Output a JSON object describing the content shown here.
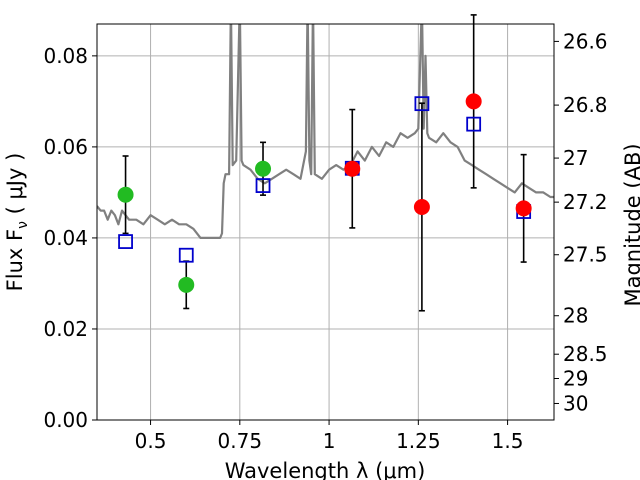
{
  "chart_data": {
    "type": "scatter",
    "xlabel": "Wavelength  λ (μm)",
    "ylabel": "Flux  F_ν  ( μJy )",
    "ylabel_parts": {
      "main": "Flux  F",
      "sub": "ν",
      "tail": "  ( μJy )"
    },
    "y2label": "Magnitude (AB)",
    "xlim": [
      0.35,
      1.63
    ],
    "ylim": [
      0.0,
      0.087
    ],
    "grid": true,
    "xticks": [
      {
        "value": 0.5,
        "label": "0.5"
      },
      {
        "value": 0.75,
        "label": "0.75"
      },
      {
        "value": 1.0,
        "label": "1"
      },
      {
        "value": 1.25,
        "label": "1.25"
      },
      {
        "value": 1.5,
        "label": "1.5"
      }
    ],
    "yticks": [
      {
        "value": 0.0,
        "label": "0.00"
      },
      {
        "value": 0.02,
        "label": "0.02"
      },
      {
        "value": 0.04,
        "label": "0.04"
      },
      {
        "value": 0.06,
        "label": "0.06"
      },
      {
        "value": 0.08,
        "label": "0.08"
      }
    ],
    "y2ticks": [
      {
        "value": 26.6,
        "label": "26.6"
      },
      {
        "value": 26.8,
        "label": "26.8"
      },
      {
        "value": 27.0,
        "label": "27"
      },
      {
        "value": 27.2,
        "label": "27.2"
      },
      {
        "value": 27.5,
        "label": "27.5"
      },
      {
        "value": 28.0,
        "label": "28"
      },
      {
        "value": 28.5,
        "label": "28.5"
      },
      {
        "value": 29.0,
        "label": "29"
      },
      {
        "value": 30.0,
        "label": "30"
      }
    ],
    "colors": {
      "spectrum": "#808080",
      "detected": "#ff0000",
      "detected_green": "#22bb22",
      "model": "#0000cc",
      "errorbar": "#000000",
      "grid": "#b0b0b0"
    },
    "spectrum": [
      [
        0.35,
        0.047
      ],
      [
        0.36,
        0.046
      ],
      [
        0.37,
        0.046
      ],
      [
        0.38,
        0.044
      ],
      [
        0.39,
        0.046
      ],
      [
        0.4,
        0.045
      ],
      [
        0.41,
        0.043
      ],
      [
        0.42,
        0.046
      ],
      [
        0.44,
        0.044
      ],
      [
        0.46,
        0.044
      ],
      [
        0.48,
        0.043
      ],
      [
        0.5,
        0.045
      ],
      [
        0.52,
        0.044
      ],
      [
        0.54,
        0.043
      ],
      [
        0.56,
        0.044
      ],
      [
        0.58,
        0.043
      ],
      [
        0.6,
        0.043
      ],
      [
        0.62,
        0.042
      ],
      [
        0.64,
        0.04
      ],
      [
        0.66,
        0.04
      ],
      [
        0.68,
        0.04
      ],
      [
        0.695,
        0.04
      ],
      [
        0.7,
        0.041
      ],
      [
        0.705,
        0.052
      ],
      [
        0.71,
        0.054
      ],
      [
        0.72,
        0.054
      ],
      [
        0.725,
        0.092
      ],
      [
        0.73,
        0.056
      ],
      [
        0.74,
        0.057
      ],
      [
        0.75,
        0.092
      ],
      [
        0.755,
        0.057
      ],
      [
        0.76,
        0.056
      ],
      [
        0.78,
        0.055
      ],
      [
        0.8,
        0.053
      ],
      [
        0.82,
        0.052
      ],
      [
        0.84,
        0.053
      ],
      [
        0.86,
        0.054
      ],
      [
        0.88,
        0.055
      ],
      [
        0.9,
        0.054
      ],
      [
        0.92,
        0.053
      ],
      [
        0.935,
        0.059
      ],
      [
        0.94,
        0.092
      ],
      [
        0.945,
        0.057
      ],
      [
        0.95,
        0.054
      ],
      [
        0.955,
        0.092
      ],
      [
        0.96,
        0.054
      ],
      [
        0.98,
        0.053
      ],
      [
        1.0,
        0.055
      ],
      [
        1.02,
        0.056
      ],
      [
        1.04,
        0.055
      ],
      [
        1.06,
        0.056
      ],
      [
        1.08,
        0.059
      ],
      [
        1.1,
        0.057
      ],
      [
        1.12,
        0.06
      ],
      [
        1.14,
        0.058
      ],
      [
        1.16,
        0.061
      ],
      [
        1.18,
        0.06
      ],
      [
        1.2,
        0.063
      ],
      [
        1.22,
        0.062
      ],
      [
        1.24,
        0.063
      ],
      [
        1.25,
        0.064
      ],
      [
        1.26,
        0.092
      ],
      [
        1.265,
        0.064
      ],
      [
        1.27,
        0.08
      ],
      [
        1.275,
        0.063
      ],
      [
        1.28,
        0.062
      ],
      [
        1.3,
        0.061
      ],
      [
        1.32,
        0.063
      ],
      [
        1.34,
        0.061
      ],
      [
        1.36,
        0.06
      ],
      [
        1.38,
        0.057
      ],
      [
        1.4,
        0.056
      ],
      [
        1.42,
        0.055
      ],
      [
        1.44,
        0.054
      ],
      [
        1.46,
        0.053
      ],
      [
        1.48,
        0.052
      ],
      [
        1.5,
        0.051
      ],
      [
        1.52,
        0.05
      ],
      [
        1.54,
        0.052
      ],
      [
        1.56,
        0.051
      ],
      [
        1.58,
        0.05
      ],
      [
        1.6,
        0.05
      ],
      [
        1.62,
        0.049
      ],
      [
        1.63,
        0.049
      ]
    ],
    "observed": [
      {
        "x": 0.43,
        "y": 0.0495,
        "err": 0.0085,
        "color": "green"
      },
      {
        "x": 0.6,
        "y": 0.0297,
        "err": 0.0052,
        "color": "green"
      },
      {
        "x": 0.815,
        "y": 0.0552,
        "err": 0.0058,
        "color": "green"
      },
      {
        "x": 1.065,
        "y": 0.0552,
        "err": 0.013,
        "color": "red"
      },
      {
        "x": 1.26,
        "y": 0.0468,
        "err": 0.0228,
        "color": "red"
      },
      {
        "x": 1.405,
        "y": 0.07,
        "err": 0.019,
        "color": "red"
      },
      {
        "x": 1.545,
        "y": 0.0465,
        "err": 0.0118,
        "color": "red"
      }
    ],
    "model": [
      {
        "x": 0.43,
        "y": 0.0392
      },
      {
        "x": 0.6,
        "y": 0.0362
      },
      {
        "x": 0.815,
        "y": 0.0515
      },
      {
        "x": 1.065,
        "y": 0.0553
      },
      {
        "x": 1.26,
        "y": 0.0695
      },
      {
        "x": 1.405,
        "y": 0.065
      },
      {
        "x": 1.545,
        "y": 0.0458
      }
    ]
  }
}
